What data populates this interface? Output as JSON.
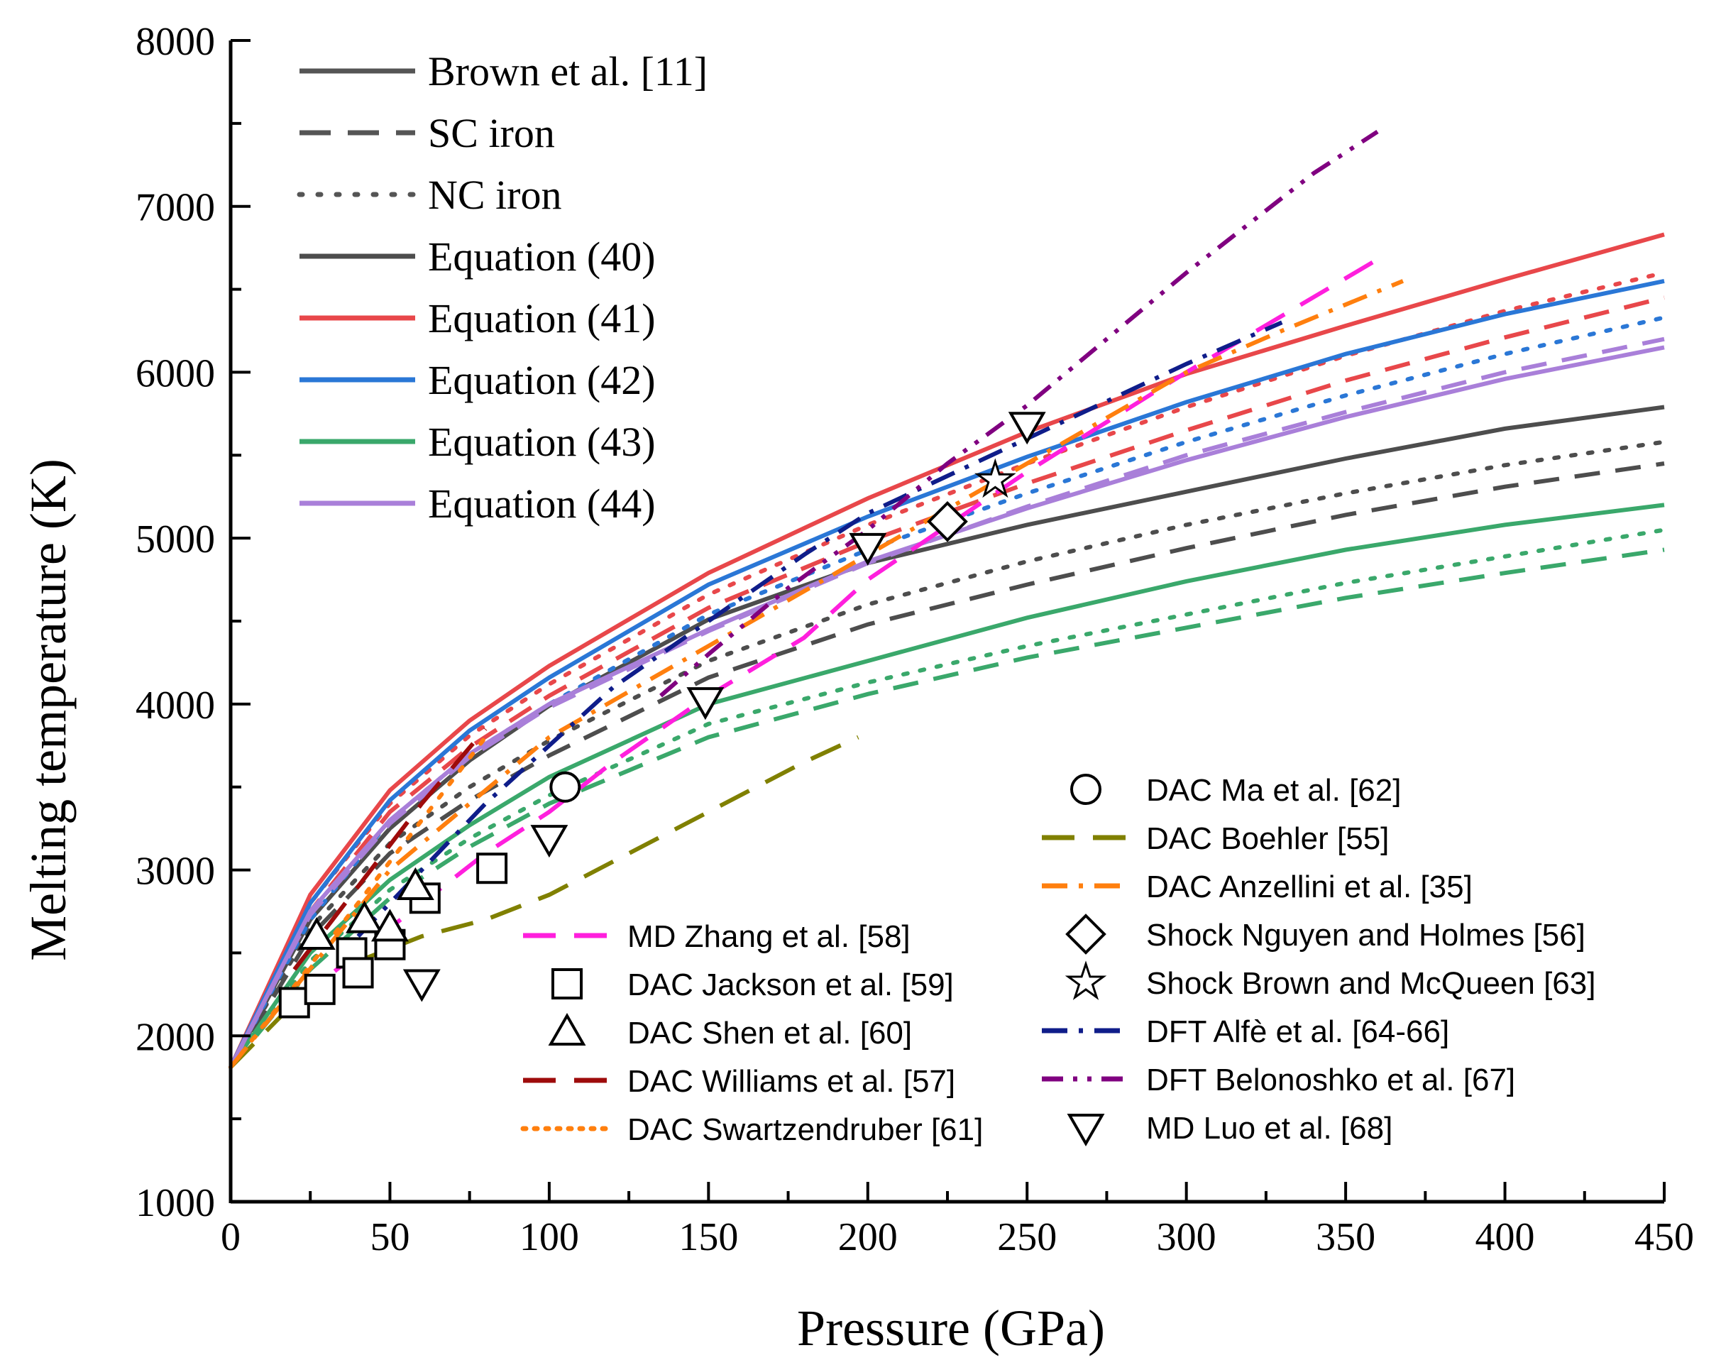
{
  "chart_data": {
    "type": "line",
    "title": "",
    "xlabel": "Pressure (GPa)",
    "ylabel": "Melting temperature (K)",
    "xlim": [
      0,
      450
    ],
    "ylim": [
      1000,
      8000
    ],
    "xticks": [
      0,
      50,
      100,
      150,
      200,
      250,
      300,
      350,
      400,
      450
    ],
    "yticks": [
      1000,
      2000,
      3000,
      4000,
      5000,
      6000,
      7000,
      8000
    ],
    "grid": false,
    "legend_style_entries": [
      {
        "label": "Brown et al. [11]",
        "style": "solid",
        "color": "#555555"
      },
      {
        "label": "SC iron",
        "style": "dash",
        "color": "#555555"
      },
      {
        "label": "NC iron",
        "style": "dot",
        "color": "#555555"
      },
      {
        "label": "Equation (40)",
        "style": "solid",
        "color": "#4d4d4d"
      },
      {
        "label": "Equation (41)",
        "style": "solid",
        "color": "#e8474a"
      },
      {
        "label": "Equation (42)",
        "style": "solid",
        "color": "#2a77d6"
      },
      {
        "label": "Equation (43)",
        "style": "solid",
        "color": "#3aa86b"
      },
      {
        "label": "Equation (44)",
        "style": "solid",
        "color": "#a97fd9"
      }
    ],
    "series": [
      {
        "name": "Equation (40)",
        "color": "#4d4d4d",
        "style": "solid",
        "x": [
          0,
          25,
          50,
          75,
          100,
          150,
          200,
          250,
          300,
          350,
          400,
          450
        ],
        "y": [
          1811,
          2700,
          3250,
          3660,
          3990,
          4510,
          4850,
          5080,
          5280,
          5480,
          5660,
          5790
        ]
      },
      {
        "name": "Equation (40) SC",
        "color": "#4d4d4d",
        "style": "dash",
        "x": [
          0,
          25,
          50,
          75,
          100,
          150,
          200,
          250,
          300,
          350,
          400,
          450
        ],
        "y": [
          1811,
          2600,
          3100,
          3420,
          3690,
          4160,
          4480,
          4720,
          4940,
          5140,
          5310,
          5450
        ]
      },
      {
        "name": "Equation (40) NC",
        "color": "#4d4d4d",
        "style": "dot",
        "x": [
          0,
          25,
          50,
          75,
          100,
          150,
          200,
          250,
          300,
          350,
          400,
          450
        ],
        "y": [
          1811,
          2650,
          3160,
          3500,
          3780,
          4260,
          4600,
          4860,
          5080,
          5270,
          5440,
          5580
        ]
      },
      {
        "name": "Equation (41)",
        "color": "#e8474a",
        "style": "solid",
        "x": [
          0,
          25,
          50,
          75,
          100,
          150,
          200,
          250,
          300,
          350,
          400,
          450
        ],
        "y": [
          1811,
          2850,
          3480,
          3900,
          4230,
          4790,
          5240,
          5640,
          5990,
          6280,
          6560,
          6830
        ]
      },
      {
        "name": "Equation (41) SC",
        "color": "#e8474a",
        "style": "dash",
        "x": [
          0,
          25,
          50,
          75,
          100,
          150,
          200,
          250,
          300,
          350,
          400,
          450
        ],
        "y": [
          1811,
          2750,
          3350,
          3740,
          4050,
          4580,
          4980,
          5330,
          5650,
          5950,
          6210,
          6450
        ]
      },
      {
        "name": "Equation (41) NC",
        "color": "#e8474a",
        "style": "dot",
        "x": [
          0,
          25,
          50,
          75,
          100,
          150,
          200,
          250,
          300,
          350,
          400,
          450
        ],
        "y": [
          1811,
          2800,
          3400,
          3810,
          4120,
          4660,
          5080,
          5450,
          5790,
          6100,
          6370,
          6600
        ]
      },
      {
        "name": "Equation (42)",
        "color": "#2a77d6",
        "style": "solid",
        "x": [
          0,
          25,
          50,
          75,
          100,
          150,
          200,
          250,
          300,
          350,
          400,
          450
        ],
        "y": [
          1811,
          2800,
          3420,
          3840,
          4160,
          4720,
          5130,
          5490,
          5820,
          6110,
          6350,
          6550
        ]
      },
      {
        "name": "Equation (42) NC",
        "color": "#2a77d6",
        "style": "dot",
        "x": [
          0,
          25,
          50,
          75,
          100,
          150,
          200,
          250,
          300,
          350,
          400,
          450
        ],
        "y": [
          1811,
          2700,
          3300,
          3700,
          4000,
          4540,
          4930,
          5270,
          5580,
          5860,
          6110,
          6330
        ]
      },
      {
        "name": "Equation (43)",
        "color": "#3aa86b",
        "style": "solid",
        "x": [
          0,
          25,
          50,
          75,
          100,
          150,
          200,
          250,
          300,
          350,
          400,
          450
        ],
        "y": [
          1811,
          2500,
          2940,
          3270,
          3560,
          4000,
          4260,
          4520,
          4740,
          4930,
          5080,
          5200
        ]
      },
      {
        "name": "Equation (43) SC",
        "color": "#3aa86b",
        "style": "dash",
        "x": [
          0,
          25,
          50,
          75,
          100,
          150,
          200,
          250,
          300,
          350,
          400,
          450
        ],
        "y": [
          1811,
          2400,
          2830,
          3140,
          3400,
          3800,
          4060,
          4280,
          4460,
          4640,
          4790,
          4930
        ]
      },
      {
        "name": "Equation (43) NC",
        "color": "#3aa86b",
        "style": "dot",
        "x": [
          0,
          25,
          50,
          75,
          100,
          150,
          200,
          250,
          300,
          350,
          400,
          450
        ],
        "y": [
          1811,
          2450,
          2880,
          3190,
          3450,
          3880,
          4130,
          4350,
          4540,
          4730,
          4890,
          5050
        ]
      },
      {
        "name": "Equation (44)",
        "color": "#a97fd9",
        "style": "solid",
        "x": [
          0,
          25,
          50,
          75,
          100,
          150,
          200,
          250,
          300,
          350,
          400,
          450
        ],
        "y": [
          1811,
          2750,
          3300,
          3700,
          4000,
          4450,
          4860,
          5180,
          5470,
          5730,
          5960,
          6150
        ]
      },
      {
        "name": "Equation (44) SC",
        "color": "#a97fd9",
        "style": "dash",
        "x": [
          0,
          25,
          50,
          75,
          100,
          150,
          200,
          250,
          300,
          350,
          400,
          450
        ],
        "y": [
          1811,
          2730,
          3280,
          3680,
          3980,
          4440,
          4850,
          5190,
          5500,
          5760,
          6000,
          6200
        ]
      },
      {
        "name": "MD Zhang et al. [58]",
        "color": "#ff1fdd",
        "style": "longdash",
        "x": [
          20,
          40,
          60,
          80,
          100,
          120,
          150,
          180,
          200,
          250,
          300,
          360
        ],
        "y": [
          2200,
          2500,
          2800,
          3100,
          3350,
          3650,
          4050,
          4400,
          4750,
          5400,
          6000,
          6680
        ]
      },
      {
        "name": "DAC Williams et al. [57]",
        "color": "#9e0b0b",
        "style": "longdash",
        "x": [
          20,
          40,
          60,
          80
        ],
        "y": [
          2400,
          2900,
          3400,
          3850
        ]
      },
      {
        "name": "DAC Swartzendruber [61]",
        "color": "#ff7f0e",
        "style": "dot",
        "x": [
          0,
          20,
          40,
          60,
          80
        ],
        "y": [
          1811,
          2300,
          2800,
          3300,
          3800
        ]
      },
      {
        "name": "DAC Boehler [55]",
        "color": "#808000",
        "style": "longdash",
        "x": [
          0,
          20,
          40,
          60,
          80,
          100,
          120,
          150,
          180,
          197
        ],
        "y": [
          1811,
          2200,
          2450,
          2600,
          2700,
          2850,
          3050,
          3350,
          3650,
          3800
        ]
      },
      {
        "name": "DAC Anzellini et al. [35]",
        "color": "#ff7f0e",
        "style": "dashdot",
        "x": [
          0,
          50,
          100,
          150,
          200,
          250,
          300,
          330,
          368
        ],
        "y": [
          1811,
          3000,
          3800,
          4350,
          4900,
          5450,
          6000,
          6250,
          6550
        ]
      },
      {
        "name": "DFT Alfè et al. [64-66]",
        "color": "#0f1d8a",
        "style": "dashdot",
        "x": [
          40,
          60,
          80,
          100,
          120,
          150,
          180,
          200,
          250,
          300,
          330
        ],
        "y": [
          2600,
          3000,
          3400,
          3750,
          4100,
          4500,
          4900,
          5150,
          5600,
          6050,
          6300
        ]
      },
      {
        "name": "DFT Belonoshko et al. [67]",
        "color": "#800080",
        "style": "dashdotdot",
        "x": [
          135,
          150,
          175,
          200,
          225,
          250,
          300,
          340,
          360
        ],
        "y": [
          4050,
          4300,
          4700,
          5050,
          5450,
          5800,
          6600,
          7200,
          7450
        ]
      }
    ],
    "scatter_series": [
      {
        "name": "DAC Ma et al. [62]",
        "marker": "circle",
        "points": [
          [
            105,
            3500
          ]
        ]
      },
      {
        "name": "DAC Jackson et al. [59]",
        "marker": "square",
        "points": [
          [
            20,
            2200
          ],
          [
            28,
            2280
          ],
          [
            38,
            2500
          ],
          [
            40,
            2380
          ],
          [
            50,
            2550
          ],
          [
            61,
            2830
          ],
          [
            82,
            3010
          ]
        ]
      },
      {
        "name": "DAC Shen et al. [60]",
        "marker": "triangle-up",
        "points": [
          [
            27,
            2600
          ],
          [
            42,
            2700
          ],
          [
            50,
            2650
          ],
          [
            58,
            2900
          ]
        ]
      },
      {
        "name": "Shock Nguyen and Holmes [56]",
        "marker": "diamond",
        "points": [
          [
            225,
            5100
          ]
        ]
      },
      {
        "name": "Shock Brown and McQueen [63]",
        "marker": "star",
        "points": [
          [
            240,
            5350
          ]
        ]
      },
      {
        "name": "MD Luo et al. [68]",
        "marker": "triangle-down",
        "points": [
          [
            60,
            2320
          ],
          [
            100,
            3190
          ],
          [
            149,
            4020
          ],
          [
            200,
            4950
          ],
          [
            250,
            5680
          ]
        ]
      }
    ],
    "legend_left": [
      {
        "label": "MD Zhang et al. [58]",
        "kind": "line",
        "style": "longdash",
        "color": "#ff1fdd"
      },
      {
        "label": "DAC Jackson et al. [59]",
        "kind": "marker",
        "marker": "square"
      },
      {
        "label": "DAC Shen et al. [60]",
        "kind": "marker",
        "marker": "triangle-up"
      },
      {
        "label": "DAC Williams et al. [57]",
        "kind": "line",
        "style": "longdash",
        "color": "#9e0b0b"
      },
      {
        "label": "DAC Swartzendruber [61]",
        "kind": "line",
        "style": "dot",
        "color": "#ff7f0e"
      }
    ],
    "legend_right": [
      {
        "label": "DAC Ma et al. [62]",
        "kind": "marker",
        "marker": "circle"
      },
      {
        "label": "DAC Boehler [55]",
        "kind": "line",
        "style": "longdash",
        "color": "#808000"
      },
      {
        "label": "DAC Anzellini et al. [35]",
        "kind": "line",
        "style": "dashdot",
        "color": "#ff7f0e"
      },
      {
        "label": "Shock Nguyen and Holmes [56]",
        "kind": "marker",
        "marker": "diamond"
      },
      {
        "label": "Shock Brown and McQueen [63]",
        "kind": "marker",
        "marker": "star"
      },
      {
        "label": "DFT Alfè et al. [64-66]",
        "kind": "line",
        "style": "dashdot",
        "color": "#0f1d8a"
      },
      {
        "label": "DFT Belonoshko et al. [67]",
        "kind": "line",
        "style": "dashdotdot",
        "color": "#800080"
      },
      {
        "label": "MD Luo et al. [68]",
        "kind": "marker",
        "marker": "triangle-down"
      }
    ]
  }
}
